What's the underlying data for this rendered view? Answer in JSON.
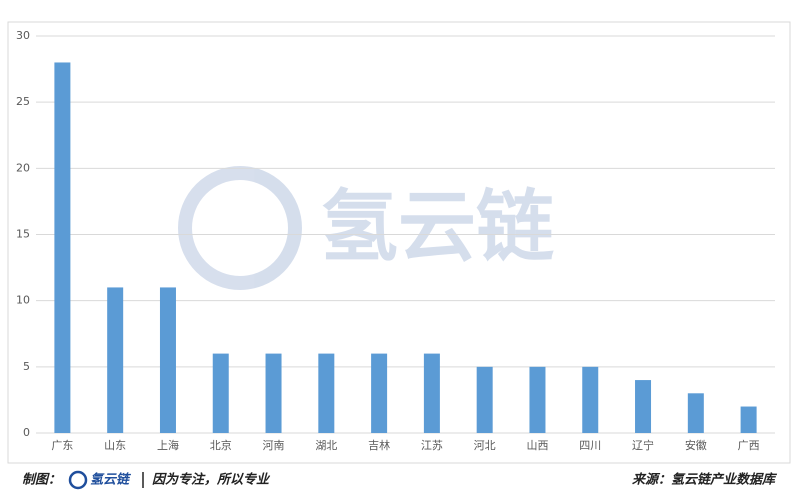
{
  "chart_data": {
    "type": "bar",
    "categories": [
      "广东",
      "山东",
      "上海",
      "北京",
      "河南",
      "湖北",
      "吉林",
      "江苏",
      "河北",
      "山西",
      "四川",
      "辽宁",
      "安徽",
      "广西"
    ],
    "values": [
      28,
      11,
      11,
      6,
      6,
      6,
      6,
      6,
      5,
      5,
      5,
      4,
      3,
      2
    ],
    "color": "#5b9bd5",
    "ylim": [
      0,
      30
    ],
    "yticks": [
      0,
      5,
      10,
      15,
      20,
      25,
      30
    ],
    "grid": true
  },
  "watermark": "氢云链",
  "footer": {
    "credit_label": "制图：",
    "brand": "氢云链",
    "slogan": "因为专注，所以专业",
    "source": "来源：氢云链产业数据库"
  }
}
